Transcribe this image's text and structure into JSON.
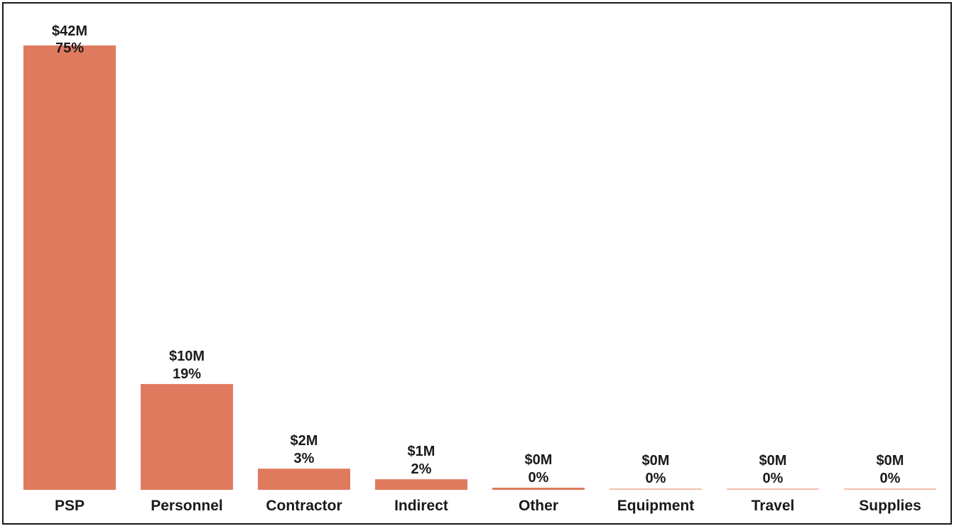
{
  "chart_data": {
    "type": "bar",
    "title": "",
    "xlabel": "",
    "ylabel": "",
    "categories": [
      "PSP",
      "Personnel",
      "Contractor",
      "Indirect",
      "Other",
      "Equipment",
      "Travel",
      "Supplies"
    ],
    "values": [
      42,
      10,
      2,
      1,
      0.2,
      0.05,
      0.05,
      0.05
    ],
    "value_labels": [
      "$42M",
      "$10M",
      "$2M",
      "$1M",
      "$0M",
      "$0M",
      "$0M",
      "$0M"
    ],
    "percent_labels": [
      "75%",
      "19%",
      "3%",
      "2%",
      "0%",
      "0%",
      "0%",
      "0%"
    ],
    "ylim": [
      0,
      42
    ],
    "grid": false,
    "legend": false,
    "colors": {
      "bar": "#E07A5F",
      "bar_faint": "#F4C0AE",
      "text": "#1A1A1A",
      "border": "#1A1A1A"
    }
  }
}
